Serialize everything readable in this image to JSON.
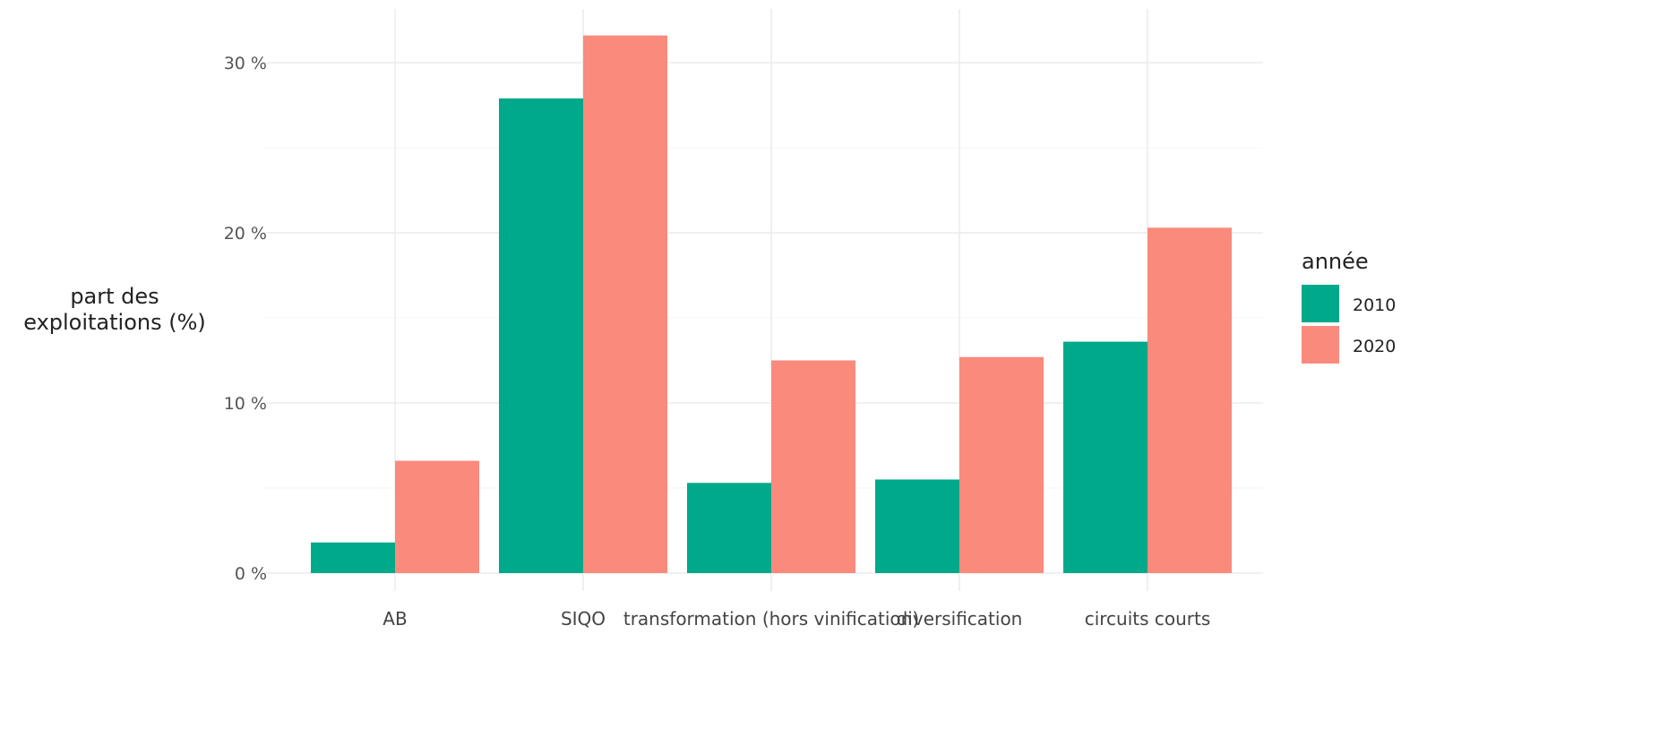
{
  "chart_data": {
    "type": "bar",
    "title": "",
    "xlabel": "",
    "ylabel_lines": [
      "part des",
      "exploitations (%)"
    ],
    "categories": [
      "AB",
      "SIQO",
      "transformation (hors vinification)",
      "diversification",
      "circuits courts"
    ],
    "series": [
      {
        "name": "2010",
        "color": "#00A98A",
        "values": [
          1.8,
          27.9,
          5.3,
          5.5,
          13.6
        ]
      },
      {
        "name": "2020",
        "color": "#FA8A7C",
        "values": [
          6.6,
          31.6,
          12.5,
          12.7,
          20.3
        ]
      }
    ],
    "ylim": [
      0,
      32.5
    ],
    "yticks": [
      0,
      10,
      20,
      30
    ],
    "ytick_labels": [
      "0 %",
      "10 %",
      "20 %",
      "30 %"
    ],
    "grid": true,
    "legend": {
      "title": "année",
      "position": "right"
    }
  }
}
